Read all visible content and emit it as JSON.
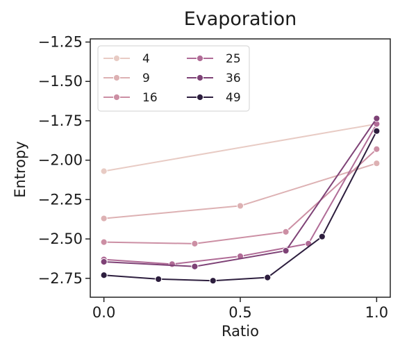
{
  "chart_data": {
    "type": "line",
    "title": "Evaporation",
    "xlabel": "Ratio",
    "ylabel": "Entropy",
    "xlim": [
      -0.05,
      1.05
    ],
    "ylim": [
      -2.87,
      -1.23
    ],
    "xticks": [
      {
        "value": 0.0,
        "label": "0.0"
      },
      {
        "value": 0.5,
        "label": "0.5"
      },
      {
        "value": 1.0,
        "label": "1.0"
      }
    ],
    "yticks": [
      {
        "value": -1.25,
        "label": "−1.25"
      },
      {
        "value": -1.5,
        "label": "−1.50"
      },
      {
        "value": -1.75,
        "label": "−1.75"
      },
      {
        "value": -2.0,
        "label": "−2.00"
      },
      {
        "value": -2.25,
        "label": "−2.25"
      },
      {
        "value": -2.5,
        "label": "−2.50"
      },
      {
        "value": -2.75,
        "label": "−2.75"
      }
    ],
    "grid": false,
    "legend": {
      "placement": "top-left",
      "columns": 2
    },
    "series": [
      {
        "name": "4",
        "color": "#e8cbc4",
        "x": [
          0.0,
          1.0
        ],
        "y": [
          -2.07,
          -1.77
        ]
      },
      {
        "name": "9",
        "color": "#ddb1b3",
        "x": [
          0.0,
          0.5,
          1.0
        ],
        "y": [
          -2.37,
          -2.29,
          -2.02
        ]
      },
      {
        "name": "16",
        "color": "#cc8fa4",
        "x": [
          0.0,
          0.333,
          0.667,
          1.0
        ],
        "y": [
          -2.52,
          -2.53,
          -2.455,
          -1.93
        ]
      },
      {
        "name": "25",
        "color": "#b06b96",
        "x": [
          0.0,
          0.25,
          0.5,
          0.75,
          1.0
        ],
        "y": [
          -2.63,
          -2.66,
          -2.61,
          -2.53,
          -1.77
        ]
      },
      {
        "name": "36",
        "color": "#7e4276",
        "x": [
          0.0,
          0.333,
          0.667,
          1.0
        ],
        "y": [
          -2.645,
          -2.675,
          -2.575,
          -1.735
        ]
      },
      {
        "name": "49",
        "color": "#2d1e3e",
        "x": [
          0.0,
          0.2,
          0.4,
          0.6,
          0.8,
          1.0
        ],
        "y": [
          -2.73,
          -2.755,
          -2.765,
          -2.745,
          -2.485,
          -1.815
        ]
      }
    ]
  }
}
